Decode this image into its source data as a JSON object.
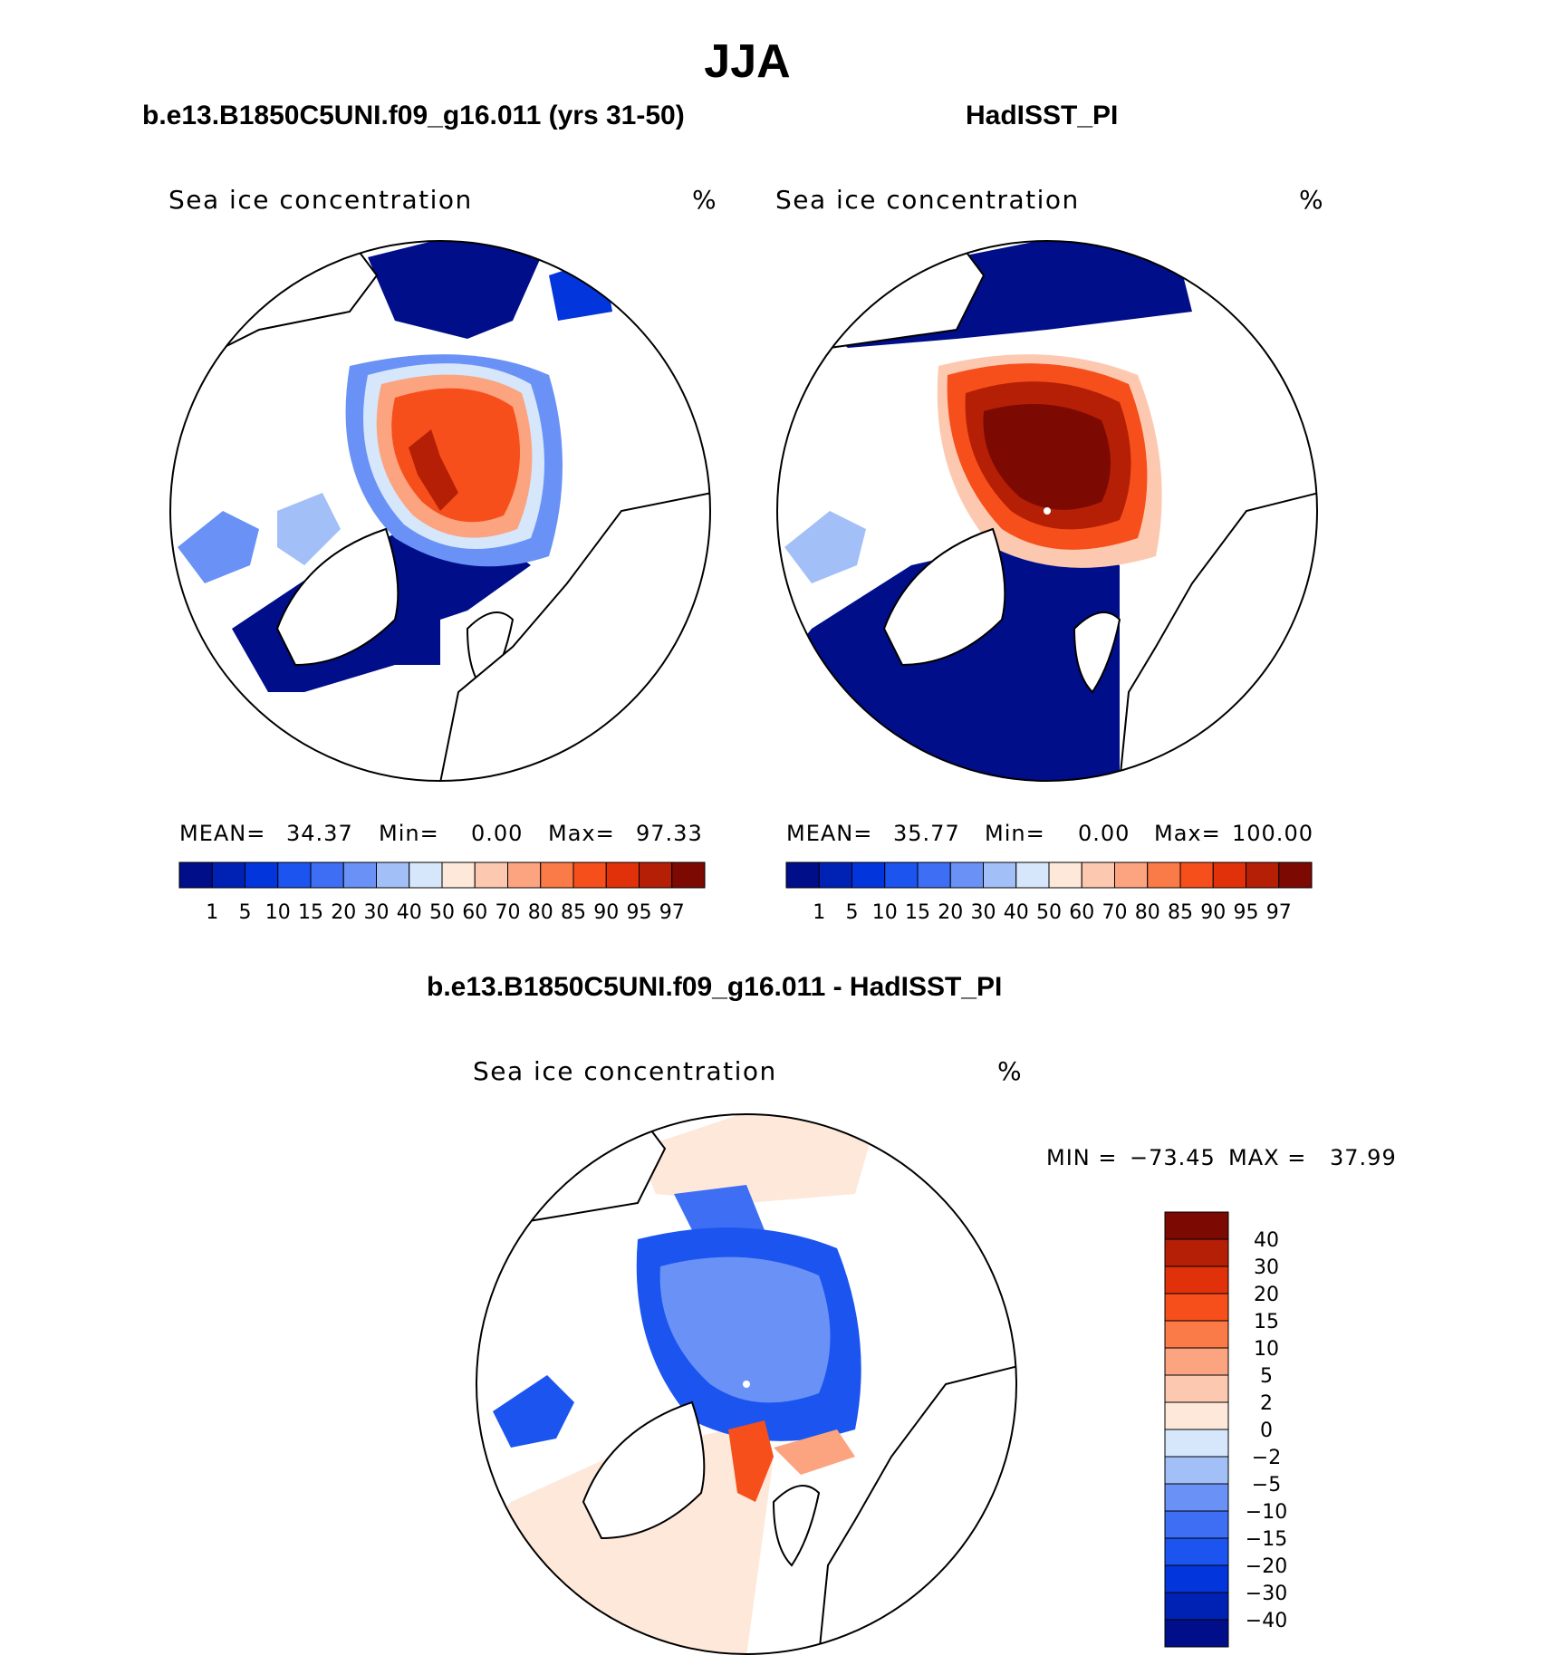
{
  "title": "JJA",
  "panels": [
    {
      "id": "model",
      "case_title": "b.e13.B1850C5UNI.f09_g16.011 (yrs 31-50)",
      "variable": "Sea ice concentration",
      "units": "%",
      "stats": {
        "mean_label": "MEAN=",
        "mean": "34.37",
        "min_label": "Min=",
        "min": "0.00",
        "max_label": "Max=",
        "max": "97.33"
      }
    },
    {
      "id": "obs",
      "case_title": "HadISST_PI",
      "variable": "Sea ice concentration",
      "units": "%",
      "stats": {
        "mean_label": "MEAN=",
        "mean": "35.77",
        "min_label": "Min=",
        "min": "0.00",
        "max_label": "Max=",
        "max": "100.00"
      }
    }
  ],
  "diff_panel": {
    "case_title": "b.e13.B1850C5UNI.f09_g16.011 - HadISST_PI",
    "variable": "Sea ice concentration",
    "units": "%",
    "stats": {
      "min_label": "MIN =",
      "min": "−73.45",
      "max_label": "MAX =",
      "max": "37.99"
    }
  },
  "colorbar_levels": [
    "1",
    "5",
    "10",
    "15",
    "20",
    "30",
    "40",
    "50",
    "60",
    "70",
    "80",
    "85",
    "90",
    "95",
    "97"
  ],
  "colorbar_colors": [
    "#000e8a",
    "#0022b4",
    "#0236dc",
    "#1c54f0",
    "#3d6ef4",
    "#6a92f6",
    "#a3bff7",
    "#d6e6fb",
    "#fde8da",
    "#fcc9b0",
    "#fba47f",
    "#fa7a48",
    "#f64f1c",
    "#e0310a",
    "#b51f05",
    "#7d0a02"
  ],
  "diff_levels": [
    "40",
    "30",
    "20",
    "15",
    "10",
    "5",
    "2",
    "0",
    "−2",
    "−5",
    "−10",
    "−15",
    "−20",
    "−30",
    "−40"
  ],
  "diff_colors": [
    "#7d0a02",
    "#b51f05",
    "#e0310a",
    "#f64f1c",
    "#fa7a48",
    "#fba47f",
    "#fcc9b0",
    "#fde8da",
    "#d6e6fb",
    "#a3bff7",
    "#6a92f6",
    "#3d6ef4",
    "#1c54f0",
    "#0236dc",
    "#0022b4",
    "#000e8a"
  ]
}
